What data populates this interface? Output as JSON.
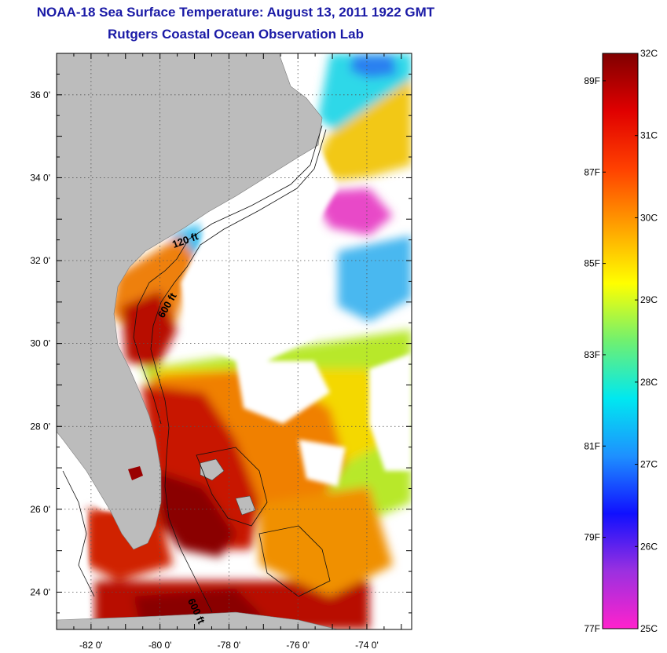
{
  "header": {
    "title": "NOAA-18 Sea Surface Temperature:  August 13, 2011 1922 GMT",
    "subtitle": "Rutgers Coastal Ocean Observation Lab"
  },
  "map": {
    "region": "US Southeast Atlantic coast",
    "lon_range": [
      -83,
      -72.7
    ],
    "lat_range": [
      23.1,
      37
    ],
    "lon_ticks": [
      {
        "value": -82,
        "label": "-82 0'"
      },
      {
        "value": -80,
        "label": "-80 0'"
      },
      {
        "value": -78,
        "label": "-78 0'"
      },
      {
        "value": -76,
        "label": "-76 0'"
      },
      {
        "value": -74,
        "label": "-74 0'"
      }
    ],
    "lat_ticks": [
      {
        "value": 36,
        "label": "36 0'"
      },
      {
        "value": 34,
        "label": "34 0'"
      },
      {
        "value": 32,
        "label": "32 0'"
      },
      {
        "value": 30,
        "label": "30 0'"
      },
      {
        "value": 28,
        "label": "28 0'"
      },
      {
        "value": 26,
        "label": "26 0'"
      },
      {
        "value": 24,
        "label": "24 0'"
      }
    ],
    "contour_labels": [
      {
        "text": "120 ft",
        "lon": -79.6,
        "lat": 32.3,
        "angle": -20
      },
      {
        "text": "600 ft",
        "lon": -79.9,
        "lat": 30.6,
        "angle": -60
      },
      {
        "text": "600 ft",
        "lon": -79.2,
        "lat": 23.8,
        "angle": 65
      }
    ],
    "colors": {
      "land": "#bcbcbc",
      "missing": "#ffffff",
      "warm": "#9a0000",
      "hot": "#d81800",
      "orange": "#f07800",
      "yellow": "#f4e000",
      "green": "#b8e82a",
      "cyan": "#2ed8e8",
      "blue": "#2050f0",
      "magenta": "#ff30c8"
    }
  },
  "colorbar": {
    "celsius": [
      {
        "value": 32,
        "label": "32C"
      },
      {
        "value": 31,
        "label": "31C"
      },
      {
        "value": 30,
        "label": "30C"
      },
      {
        "value": 29,
        "label": "29C"
      },
      {
        "value": 28,
        "label": "28C"
      },
      {
        "value": 27,
        "label": "27C"
      },
      {
        "value": 26,
        "label": "26C"
      },
      {
        "value": 25,
        "label": "25C"
      }
    ],
    "fahrenheit": [
      {
        "value": 89,
        "label": "89F"
      },
      {
        "value": 87,
        "label": "87F"
      },
      {
        "value": 85,
        "label": "85F"
      },
      {
        "value": 83,
        "label": "83F"
      },
      {
        "value": 81,
        "label": "81F"
      },
      {
        "value": 79,
        "label": "79F"
      },
      {
        "value": 77,
        "label": "77F"
      }
    ],
    "stops": [
      "#ff22cc",
      "#9b30e0",
      "#1010ff",
      "#1e90ff",
      "#00e8f0",
      "#70f070",
      "#ffff00",
      "#ffa000",
      "#ff4000",
      "#e00000",
      "#800000"
    ]
  }
}
